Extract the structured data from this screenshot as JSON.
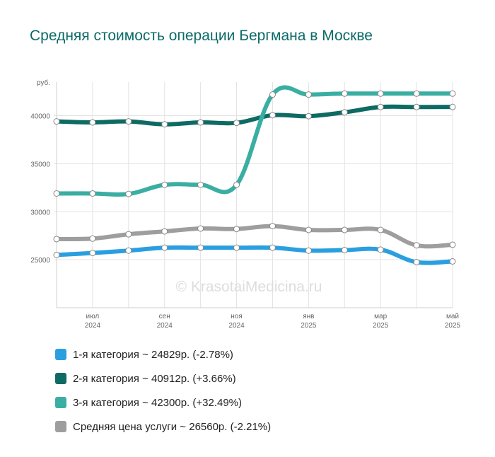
{
  "title": "Средняя стоимость операции Бергмана в Москве",
  "watermark": "© KrasotaiMedicina.ru",
  "chart_data": {
    "type": "line",
    "ylabel": "руб.",
    "ylim": [
      20000,
      43500
    ],
    "yticks": [
      25000,
      30000,
      35000,
      40000
    ],
    "x": [
      0,
      1,
      2,
      3,
      4,
      5,
      6,
      7,
      8,
      9,
      10,
      11
    ],
    "xtick_positions": [
      1,
      3,
      5,
      7,
      9,
      11
    ],
    "xtick_labels": [
      [
        "июл",
        "2024"
      ],
      [
        "сен",
        "2024"
      ],
      [
        "ноя",
        "2024"
      ],
      [
        "янв",
        "2025"
      ],
      [
        "мар",
        "2025"
      ],
      [
        "май",
        "2025"
      ]
    ],
    "grid": true,
    "series": [
      {
        "name": "1-я категория",
        "color": "#2a9fe0",
        "values": [
          25500,
          25700,
          25950,
          26250,
          26250,
          26250,
          26250,
          25950,
          26000,
          26050,
          24750,
          24829
        ]
      },
      {
        "name": "2-я категория",
        "color": "#0e6b63",
        "values": [
          39400,
          39300,
          39400,
          39100,
          39300,
          39250,
          40050,
          39950,
          40350,
          40900,
          40900,
          40912
        ]
      },
      {
        "name": "3-я категория",
        "color": "#3aaea3",
        "values": [
          31900,
          31900,
          31850,
          32800,
          32800,
          32800,
          42200,
          42200,
          42300,
          42300,
          42300,
          42300
        ]
      },
      {
        "name": "Средняя цена услуги",
        "color": "#9e9e9e",
        "values": [
          27150,
          27200,
          27650,
          27950,
          28250,
          28200,
          28500,
          28100,
          28100,
          28100,
          26500,
          26560
        ]
      }
    ]
  },
  "legend": [
    {
      "label": "1-я категория ~ 24829р. (-2.78%)",
      "color": "#2a9fe0"
    },
    {
      "label": "2-я категория ~ 40912р. (+3.66%)",
      "color": "#0e6b63"
    },
    {
      "label": "3-я категория ~ 42300р. (+32.49%)",
      "color": "#3aaea3"
    },
    {
      "label": "Средняя цена услуги ~ 26560р. (-2.21%)",
      "color": "#9e9e9e"
    }
  ]
}
